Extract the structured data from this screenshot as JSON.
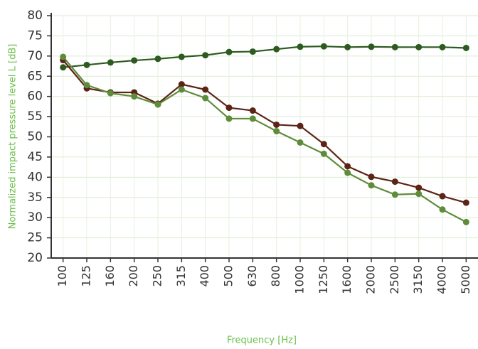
{
  "chart_data": {
    "type": "line",
    "xlabel": "Frequency [Hz]",
    "ylabel": "Normalized impact pressure level L [dB]",
    "categories": [
      "100",
      "125",
      "160",
      "200",
      "250",
      "315",
      "400",
      "500",
      "630",
      "800",
      "1000",
      "1250",
      "1600",
      "2000",
      "2500",
      "3150",
      "4000",
      "5000"
    ],
    "series": [
      {
        "color": "#2d5a1f",
        "values": [
          67.2,
          67.8,
          68.4,
          68.9,
          69.3,
          69.8,
          70.2,
          71.0,
          71.1,
          71.7,
          72.3,
          72.4,
          72.2,
          72.3,
          72.2,
          72.2,
          72.2,
          72.0
        ]
      },
      {
        "color": "#5c2417",
        "values": [
          69.0,
          62.0,
          61.0,
          61.0,
          58.2,
          63.0,
          61.7,
          57.2,
          56.5,
          53.0,
          52.7,
          48.2,
          42.7,
          40.1,
          38.9,
          37.4,
          35.3,
          33.7
        ]
      },
      {
        "color": "#5e8c3b",
        "values": [
          69.8,
          62.8,
          60.8,
          60.0,
          58.0,
          61.7,
          59.6,
          54.5,
          54.5,
          51.4,
          48.6,
          45.8,
          41.1,
          38.0,
          35.7,
          35.9,
          32.0,
          28.9
        ]
      }
    ],
    "ylim": [
      20,
      80
    ],
    "yticks": [
      20,
      25,
      30,
      35,
      40,
      45,
      50,
      55,
      60,
      65,
      70,
      75,
      80
    ],
    "grid": true
  }
}
